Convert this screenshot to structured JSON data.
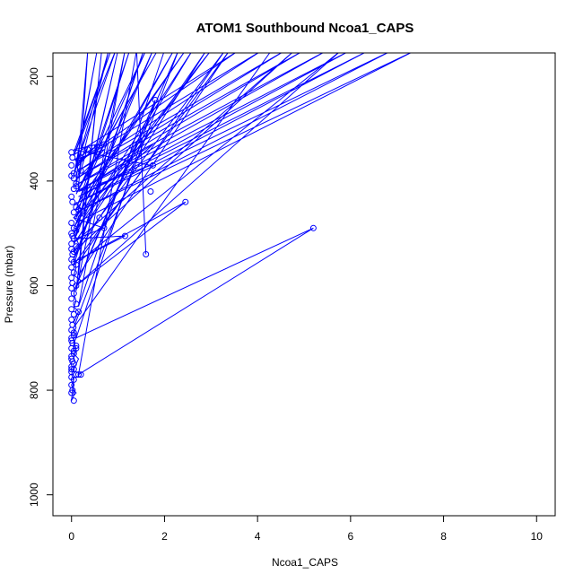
{
  "chart_data": {
    "type": "line",
    "title": "ATOM1 Southbound Ncoa1_CAPS",
    "xlabel": "Ncoa1_CAPS",
    "ylabel": "Pressure (mbar)",
    "xlim": [
      -0.4,
      10.4
    ],
    "ylim": [
      1040,
      155
    ],
    "y_reversed": true,
    "x_ticks": [
      0,
      2,
      4,
      6,
      8,
      10
    ],
    "y_ticks": [
      200,
      400,
      600,
      800,
      1000
    ],
    "grid": false,
    "legend": "none",
    "color": "#0000ff",
    "marker": "open-circle",
    "series": [
      {
        "x": [
          0.05,
          0.85,
          0.05,
          0.95,
          0.1,
          0.55,
          0.05,
          0.8,
          0.1,
          0.35,
          0.15,
          1.85,
          0.1,
          1.6,
          0.15,
          2.45,
          0.1,
          1.25,
          0.1,
          2.2,
          0.05,
          1.75,
          0.1,
          1.0,
          0.05,
          2.9,
          0.1,
          1.55,
          0.05,
          3.4,
          0.15,
          0.65,
          0.1,
          1.15,
          0.15,
          2.0
        ],
        "y": [
          345,
          150,
          352,
          150,
          370,
          150,
          390,
          150,
          405,
          150,
          415,
          150,
          425,
          150,
          440,
          150,
          455,
          150,
          470,
          150,
          490,
          150,
          505,
          150,
          520,
          150,
          540,
          150,
          560,
          150,
          580,
          150,
          610,
          150,
          640,
          150
        ]
      },
      {
        "x": [
          0.05,
          3.6,
          0.1,
          4.1,
          0.15,
          4.6,
          0.1,
          5.0,
          0.05,
          5.5,
          0.1,
          6.0,
          0.15,
          6.4,
          0.05,
          6.9,
          0.1,
          7.4,
          0.1,
          3.0,
          0.05,
          2.6,
          0.1,
          4.8,
          0.05,
          3.3,
          0.15,
          5.8,
          0.1,
          2.3,
          0.05,
          4.3
        ],
        "y": [
          350,
          150,
          365,
          150,
          380,
          150,
          395,
          150,
          410,
          150,
          420,
          150,
          430,
          150,
          445,
          150,
          460,
          150,
          480,
          150,
          500,
          150,
          515,
          150,
          535,
          150,
          555,
          150,
          600,
          150,
          680,
          150
        ]
      },
      {
        "x": [
          1.6,
          1.4,
          0.15,
          5.2,
          0.1,
          1.8,
          0.1,
          2.45,
          0.05,
          1.15,
          0.1,
          0.7,
          0.05,
          1.75,
          0.15,
          1.7,
          0.05,
          0.55,
          0.1,
          0.35,
          0.15,
          0.7,
          0.05,
          0.6
        ],
        "y": [
          540,
          150,
          770,
          490,
          700,
          245,
          600,
          440,
          555,
          505,
          510,
          490,
          470,
          330,
          420,
          370,
          340,
          330,
          375,
          335,
          395,
          340,
          360,
          330
        ]
      },
      {
        "x": [
          0.1,
          0.2,
          0.05,
          0.15,
          0.1,
          0.05,
          0.1,
          0.15,
          0.05,
          0.1,
          0.05,
          0.1,
          0.05,
          0.2,
          0.1,
          0.05,
          0.1,
          0.05,
          0.15,
          0.1,
          0.05,
          0.1,
          0.05,
          0.1,
          0.05,
          0.1,
          0.05,
          0.15,
          0.1,
          0.05,
          0.0,
          0.05,
          0.0,
          0.05,
          0.1,
          0.05,
          0.0,
          0.05
        ],
        "y": [
          440,
          455,
          470,
          480,
          490,
          500,
          510,
          520,
          530,
          540,
          550,
          565,
          580,
          590,
          600,
          615,
          630,
          640,
          650,
          660,
          670,
          680,
          690,
          700,
          710,
          720,
          730,
          740,
          750,
          760,
          770,
          780,
          790,
          800,
          805,
          810,
          820,
          775
        ]
      }
    ],
    "markers": {
      "x": [
        0.0,
        0.02,
        0.0,
        0.05,
        0.0,
        0.1,
        0.05,
        0.0,
        0.02,
        0.1,
        0.15,
        0.05,
        0.2,
        0.0,
        0.05,
        0.1,
        0.0,
        0.02,
        0.05,
        0.0,
        0.1,
        0.0,
        0.05,
        0.02,
        0.0,
        0.05,
        0.1,
        0.0,
        0.05,
        0.0,
        0.02,
        0.0,
        0.05,
        0.0,
        0.1,
        0.0,
        0.05,
        0.0,
        0.02,
        0.0,
        0.05,
        0.0,
        0.1,
        0.05,
        0.0,
        0.02,
        0.0,
        0.05,
        0.0,
        0.1,
        0.0,
        0.05,
        0.0,
        0.02,
        0.0,
        0.05,
        0.15,
        0.2,
        0.0,
        0.05,
        0.0,
        0.02,
        0.0,
        0.05,
        0.0,
        0.35,
        0.55,
        0.7,
        0.15,
        0.2,
        1.75,
        1.8,
        1.7,
        2.45,
        5.2,
        1.15,
        0.7,
        0.6,
        1.6,
        0.1,
        0.15,
        0.05,
        0.1,
        0.2,
        0.05,
        0.1
      ],
      "y": [
        345,
        355,
        370,
        385,
        390,
        405,
        415,
        430,
        440,
        450,
        455,
        460,
        470,
        480,
        490,
        495,
        500,
        505,
        510,
        520,
        525,
        530,
        535,
        540,
        550,
        555,
        560,
        565,
        575,
        585,
        595,
        605,
        615,
        625,
        635,
        645,
        655,
        665,
        675,
        685,
        695,
        705,
        715,
        725,
        735,
        745,
        755,
        760,
        765,
        770,
        775,
        780,
        790,
        800,
        805,
        820,
        770,
        770,
        720,
        730,
        700,
        710,
        740,
        750,
        760,
        340,
        335,
        330,
        360,
        380,
        370,
        245,
        420,
        440,
        490,
        505,
        490,
        470,
        540,
        600,
        650,
        690,
        720,
        355,
        395,
        410
      ]
    }
  }
}
